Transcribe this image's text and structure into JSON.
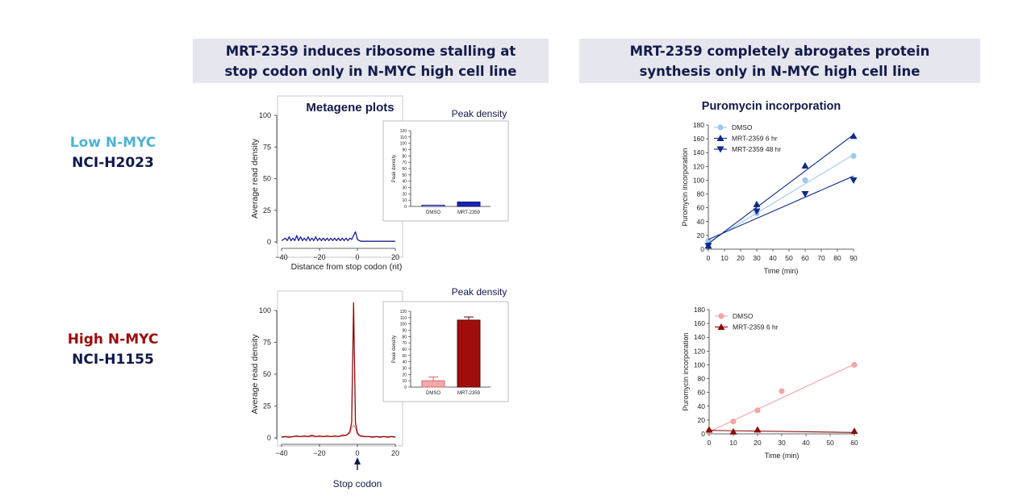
{
  "headers": {
    "left": [
      "MRT-2359 induces ribosome stalling at",
      "stop codon only in N-MYC high cell line"
    ],
    "right": [
      "MRT-2359 completely abrogates protein",
      "synthesis only in N-MYC high cell line"
    ]
  },
  "rows": {
    "low": {
      "label": "Low N-MYC",
      "cell_line": "NCI-H2023"
    },
    "high": {
      "label": "High N-MYC",
      "cell_line": "NCI-H1155"
    }
  },
  "stop_codon_label": "Stop codon",
  "colors": {
    "low_line": "#1a1f8c",
    "high_line": "#8b0a0a",
    "high_dmso": "#f3a3a3",
    "puro_dmso": "#9ec9ee",
    "puro_mrt": "#0d2a8a",
    "puro_high_dmso": "#f2a5a5",
    "puro_high_mrt": "#8a0a0a"
  },
  "chart_data": [
    {
      "id": "metagene_low",
      "type": "line",
      "title": "Metagene plots",
      "xlabel": "Distance from stop codon (nt)",
      "ylabel": "Average read density",
      "xlim": [
        -40,
        20
      ],
      "ylim": [
        0,
        100
      ],
      "xticks": [
        -40,
        -20,
        0,
        20
      ],
      "yticks": [
        0,
        25,
        50,
        75,
        100
      ],
      "series": [
        {
          "values_x": [
            -40,
            -39,
            -38,
            -37,
            -36,
            -35,
            -34,
            -33,
            -32,
            -31,
            -30,
            -29,
            -28,
            -27,
            -26,
            -25,
            -24,
            -23,
            -22,
            -21,
            -20,
            -19,
            -18,
            -17,
            -16,
            -15,
            -14,
            -13,
            -12,
            -11,
            -10,
            -9,
            -8,
            -7,
            -6,
            -5,
            -4,
            -3,
            -2,
            -1,
            0,
            1,
            2,
            3,
            5,
            10,
            15,
            20
          ],
          "values_y": [
            1,
            2,
            3,
            1,
            4,
            1,
            3,
            1,
            5,
            1,
            4,
            1,
            3,
            1,
            4,
            1,
            3,
            1,
            4,
            1,
            3,
            1,
            3,
            1,
            3,
            1,
            3,
            1,
            3,
            1,
            3,
            1,
            3,
            1,
            3,
            1,
            3,
            2,
            5,
            8,
            2,
            1,
            0.5,
            0.5,
            0.5,
            0.5,
            0.5,
            0.5
          ]
        }
      ]
    },
    {
      "id": "peak_low",
      "type": "bar",
      "title": "Peak density",
      "ylabel": "Peak density",
      "categories": [
        "DMSO",
        "MRT-2359"
      ],
      "values": [
        2,
        7
      ],
      "ylim": [
        0,
        120
      ],
      "yticks": [
        0,
        10,
        20,
        30,
        40,
        50,
        60,
        70,
        80,
        90,
        100,
        110,
        120
      ]
    },
    {
      "id": "metagene_high",
      "type": "line",
      "ylabel": "Average read density",
      "xlim": [
        -40,
        20
      ],
      "ylim": [
        0,
        100
      ],
      "xticks": [
        -40,
        -20,
        0,
        20
      ],
      "yticks": [
        0,
        25,
        50,
        75,
        100
      ],
      "series": [
        {
          "values_x": [
            -40,
            -38,
            -36,
            -34,
            -32,
            -30,
            -28,
            -26,
            -24,
            -22,
            -20,
            -18,
            -16,
            -14,
            -12,
            -10,
            -8,
            -6,
            -5,
            -4,
            -3,
            -2,
            -1,
            0,
            1,
            2,
            4,
            6,
            8,
            10,
            12,
            14,
            16,
            18,
            20
          ],
          "values_y": [
            0.5,
            1,
            0.5,
            1,
            1.5,
            1,
            1.5,
            1,
            2,
            1,
            1.5,
            1,
            1.5,
            1,
            1.5,
            1,
            2,
            2,
            3,
            5,
            12,
            106,
            12,
            4,
            2,
            1.5,
            1,
            1,
            0.5,
            1,
            0.5,
            1,
            0.5,
            1,
            0.5
          ]
        },
        {
          "values_x": [
            -40,
            -35,
            -30,
            -25,
            -20,
            -15,
            -10,
            -6,
            -4,
            -3,
            -2,
            -1,
            0,
            2,
            5,
            10,
            15,
            20
          ],
          "values_y": [
            1,
            1,
            1,
            1,
            1,
            1,
            1,
            2,
            4,
            8,
            10,
            8,
            3,
            1,
            1,
            1,
            1,
            1
          ]
        }
      ]
    },
    {
      "id": "peak_high",
      "type": "bar",
      "title": "Peak density",
      "ylabel": "Peak density",
      "categories": [
        "DMSO",
        "MRT-2359"
      ],
      "values": [
        10,
        106
      ],
      "errors": [
        6,
        5
      ],
      "ylim": [
        0,
        120
      ],
      "yticks": [
        0,
        10,
        20,
        30,
        40,
        50,
        60,
        70,
        80,
        90,
        100,
        110,
        120
      ]
    },
    {
      "id": "puro_low",
      "type": "scatter",
      "title": "Puromycin incorporation",
      "xlabel": "Time (min)",
      "ylabel": "Puromycin incorporation",
      "xlim": [
        0,
        90
      ],
      "ylim": [
        0,
        180
      ],
      "xticks": [
        0,
        10,
        20,
        30,
        40,
        50,
        60,
        70,
        80,
        90
      ],
      "yticks": [
        0,
        20,
        40,
        60,
        80,
        100,
        120,
        140,
        160,
        180
      ],
      "series": [
        {
          "name": "DMSO",
          "x": [
            0,
            30,
            60,
            90
          ],
          "y": [
            12,
            52,
            100,
            135
          ],
          "fit": [
            [
              0,
              10
            ],
            [
              90,
              137
            ]
          ]
        },
        {
          "name": "MRT-2359 6 hr",
          "x": [
            0,
            30,
            60,
            90
          ],
          "y": [
            5,
            65,
            121,
            164
          ],
          "fit": [
            [
              0,
              8
            ],
            [
              90,
              166
            ]
          ]
        },
        {
          "name": "MRT-2359 48 hr",
          "x": [
            0,
            30,
            60,
            90
          ],
          "y": [
            5,
            55,
            80,
            100
          ],
          "fit": [
            [
              0,
              14
            ],
            [
              90,
              106
            ]
          ]
        }
      ]
    },
    {
      "id": "puro_high",
      "type": "scatter",
      "xlabel": "Time (min)",
      "ylabel": "Puromycin incorporation",
      "xlim": [
        0,
        60
      ],
      "ylim": [
        0,
        180
      ],
      "xticks": [
        0,
        10,
        20,
        30,
        40,
        50,
        60
      ],
      "yticks": [
        0,
        20,
        40,
        60,
        80,
        100,
        120,
        140,
        160,
        180
      ],
      "series": [
        {
          "name": "DMSO",
          "x": [
            0,
            10,
            20,
            30,
            60
          ],
          "y": [
            4,
            18,
            34,
            62,
            100
          ],
          "fit": [
            [
              0,
              3
            ],
            [
              60,
              101
            ]
          ]
        },
        {
          "name": "MRT-2359 6 hr",
          "x": [
            0,
            10,
            20,
            60
          ],
          "y": [
            6,
            3,
            6,
            4
          ],
          "fit": [
            [
              0,
              5
            ],
            [
              60,
              2
            ]
          ]
        }
      ]
    }
  ]
}
